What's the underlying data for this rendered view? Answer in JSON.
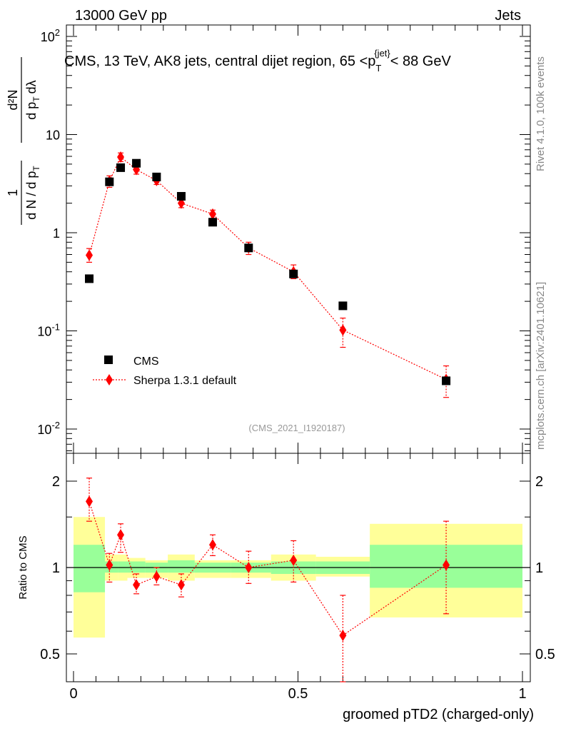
{
  "header": {
    "left": "13000 GeV pp",
    "right": "Jets"
  },
  "plot_title": "CMS, 13 TeV, AK8 jets, central dijet region, 65 <pᵀ{jet}< 88 GeV",
  "plot_title_parts": {
    "prefix": "CMS, 13 TeV, AK8 jets, central dijet region, 65 <p",
    "sub": "T",
    "sup": "{jet}",
    "suffix": "< 88 GeV"
  },
  "ylabel_top": "1/N dN/dp_T d2N/dp_T dlambda",
  "ylabel_top_parts": {
    "frac_num": "1",
    "frac_den": "d N / d p",
    "frac_den_sub": "T",
    "num2": "d²N",
    "den2": "d p",
    "den2_sub": "T",
    "den2_tail": "dλ"
  },
  "ylabel_bottom": "Ratio to CMS",
  "xlabel": "groomed pTD2 (charged-only)",
  "analysis_id": "(CMS_2021_I1920187)",
  "side_text_top": "Rivet 4.1.0,  100k events",
  "side_text_bottom": "mcplots.cern.ch [arXiv:2401.10621]",
  "legend": {
    "data_label": "CMS",
    "mc_label": "Sherpa 1.3.1 default"
  },
  "colors": {
    "data": "#000000",
    "mc": "#ff0000",
    "band_inner": "#99ff99",
    "band_outer": "#ffff99"
  },
  "chart_data": [
    {
      "type": "scatter",
      "title": "CMS, 13 TeV, AK8 jets, central dijet region, 65 < p_T^{jet} < 88 GeV",
      "xlabel": "groomed pTD2 (charged-only)",
      "ylabel": "1/N dN/dp_T d2N/dp_T dlambda",
      "yscale": "log",
      "xlim": [
        0,
        1
      ],
      "ylim": [
        0.005,
        150
      ],
      "y_ticks": [
        "10^-2",
        "10^-1",
        "1",
        "10",
        "10^2"
      ],
      "series": [
        {
          "name": "CMS",
          "x": [
            0.035,
            0.08,
            0.105,
            0.14,
            0.185,
            0.24,
            0.31,
            0.39,
            0.49,
            0.6,
            0.83
          ],
          "y": [
            0.34,
            3.3,
            4.6,
            5.1,
            3.7,
            2.35,
            1.28,
            0.7,
            0.38,
            0.18,
            0.031
          ]
        },
        {
          "name": "Sherpa 1.3.1 default",
          "x": [
            0.035,
            0.08,
            0.105,
            0.14,
            0.185,
            0.24,
            0.31,
            0.39,
            0.49,
            0.6,
            0.83
          ],
          "y": [
            0.59,
            3.35,
            5.9,
            4.4,
            3.4,
            2.0,
            1.55,
            0.7,
            0.4,
            0.102,
            0.032
          ],
          "yerr_low": [
            0.5,
            2.9,
            5.3,
            3.95,
            3.1,
            1.8,
            1.4,
            0.6,
            0.34,
            0.068,
            0.021
          ],
          "yerr_high": [
            0.69,
            3.8,
            6.5,
            4.85,
            3.7,
            2.2,
            1.7,
            0.8,
            0.47,
            0.135,
            0.044
          ]
        }
      ]
    },
    {
      "type": "scatter",
      "xlabel": "groomed pTD2 (charged-only)",
      "ylabel": "Ratio to CMS",
      "yscale": "log",
      "xlim": [
        0,
        1
      ],
      "ylim": [
        0.4,
        2.4
      ],
      "y_ticks": [
        "0.5",
        "1",
        "2"
      ],
      "x_ticks": [
        "0",
        "0.5",
        "1"
      ],
      "reference_line": 1,
      "bands": {
        "bin_edges": [
          0.0,
          0.07,
          0.1,
          0.12,
          0.16,
          0.21,
          0.27,
          0.35,
          0.44,
          0.54,
          0.66,
          1.0
        ],
        "inner_low": [
          0.82,
          0.96,
          0.96,
          0.96,
          0.96,
          0.96,
          0.96,
          0.96,
          0.95,
          0.95,
          0.85
        ],
        "inner_high": [
          1.2,
          1.05,
          1.05,
          1.05,
          1.04,
          1.06,
          1.04,
          1.04,
          1.05,
          1.05,
          1.2
        ],
        "outer_low": [
          0.57,
          0.9,
          0.9,
          0.92,
          0.92,
          0.9,
          0.92,
          0.92,
          0.9,
          0.93,
          0.67
        ],
        "outer_high": [
          1.5,
          1.11,
          1.11,
          1.08,
          1.06,
          1.11,
          1.06,
          1.06,
          1.11,
          1.09,
          1.42
        ]
      },
      "series": [
        {
          "name": "Sherpa 1.3.1 default / CMS",
          "x": [
            0.035,
            0.08,
            0.105,
            0.14,
            0.185,
            0.24,
            0.31,
            0.39,
            0.49,
            0.6,
            0.83
          ],
          "y": [
            1.7,
            1.02,
            1.3,
            0.87,
            0.93,
            0.87,
            1.2,
            1.0,
            1.06,
            0.58,
            1.02
          ],
          "yerr_low": [
            1.45,
            0.89,
            1.13,
            0.81,
            0.87,
            0.79,
            1.1,
            0.88,
            0.89,
            0.38,
            0.69
          ],
          "yerr_high": [
            2.05,
            1.12,
            1.42,
            0.95,
            1.0,
            0.95,
            1.3,
            1.14,
            1.24,
            0.8,
            1.45
          ]
        }
      ]
    }
  ]
}
